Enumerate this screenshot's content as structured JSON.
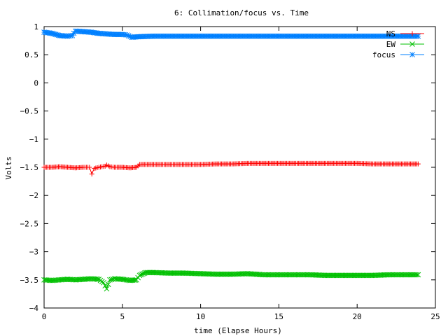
{
  "chart_data": {
    "type": "line",
    "title": "6: Collimation/focus vs. Time",
    "xlabel": "time (Elapse Hours)",
    "ylabel": "Volts",
    "xlim": [
      0,
      25
    ],
    "ylim": [
      -4,
      1
    ],
    "xticks": [
      0,
      5,
      10,
      15,
      20,
      25
    ],
    "yticks": [
      1,
      0.5,
      0,
      -0.5,
      -1,
      -1.5,
      -2,
      -2.5,
      -3,
      -3.5,
      -4
    ],
    "ytick_labels": [
      "1",
      "0.5",
      "0",
      "−0.5",
      "−1",
      "−1.5",
      "−2",
      "−2.5",
      "−3",
      "−3.5",
      "−4"
    ],
    "grid": false,
    "legend_position": "top-right",
    "series": [
      {
        "name": "NS",
        "color": "#ff0000",
        "marker": "plus",
        "x": [
          0,
          0.5,
          1,
          1.5,
          2,
          2.5,
          2.9,
          3.05,
          3.2,
          3.5,
          3.9,
          4.0,
          4.2,
          4.5,
          5,
          5.5,
          5.9,
          6.1,
          7,
          8,
          9,
          10,
          11,
          12,
          13,
          14,
          15,
          16,
          17,
          18,
          19,
          20,
          21,
          22,
          23,
          23.9
        ],
        "y": [
          -1.5,
          -1.5,
          -1.49,
          -1.5,
          -1.51,
          -1.5,
          -1.5,
          -1.62,
          -1.52,
          -1.5,
          -1.48,
          -1.46,
          -1.49,
          -1.5,
          -1.5,
          -1.51,
          -1.5,
          -1.45,
          -1.45,
          -1.45,
          -1.45,
          -1.45,
          -1.44,
          -1.44,
          -1.43,
          -1.43,
          -1.43,
          -1.43,
          -1.43,
          -1.43,
          -1.43,
          -1.43,
          -1.44,
          -1.44,
          -1.44,
          -1.44
        ]
      },
      {
        "name": "EW",
        "color": "#00c000",
        "marker": "cross",
        "x": [
          0,
          0.5,
          1,
          1.5,
          2,
          2.5,
          3,
          3.5,
          3.8,
          4.0,
          4.2,
          4.5,
          5,
          5.5,
          5.9,
          6.1,
          6.5,
          7,
          8,
          9,
          10,
          11,
          12,
          13,
          14,
          15,
          16,
          17,
          18,
          19,
          20,
          21,
          22,
          23,
          23.9
        ],
        "y": [
          -3.5,
          -3.51,
          -3.5,
          -3.49,
          -3.5,
          -3.49,
          -3.48,
          -3.49,
          -3.55,
          -3.66,
          -3.5,
          -3.48,
          -3.49,
          -3.51,
          -3.5,
          -3.42,
          -3.37,
          -3.37,
          -3.38,
          -3.38,
          -3.39,
          -3.4,
          -3.4,
          -3.39,
          -3.41,
          -3.41,
          -3.41,
          -3.41,
          -3.42,
          -3.42,
          -3.42,
          -3.42,
          -3.41,
          -3.41,
          -3.41
        ]
      },
      {
        "name": "focus",
        "color": "#0080ff",
        "marker": "star",
        "x": [
          0,
          0.5,
          1,
          1.5,
          1.8,
          2,
          2.5,
          3,
          3.5,
          4,
          4.5,
          5,
          5.3,
          5.6,
          6,
          7,
          8,
          9,
          10,
          11,
          12,
          13,
          14,
          15,
          16,
          17,
          18,
          19,
          20,
          21,
          22,
          23,
          23.9
        ],
        "y": [
          0.9,
          0.88,
          0.84,
          0.83,
          0.84,
          0.92,
          0.91,
          0.9,
          0.88,
          0.87,
          0.86,
          0.86,
          0.85,
          0.81,
          0.82,
          0.83,
          0.83,
          0.83,
          0.83,
          0.83,
          0.83,
          0.83,
          0.83,
          0.83,
          0.83,
          0.83,
          0.83,
          0.83,
          0.83,
          0.83,
          0.83,
          0.83,
          0.83
        ]
      }
    ]
  }
}
